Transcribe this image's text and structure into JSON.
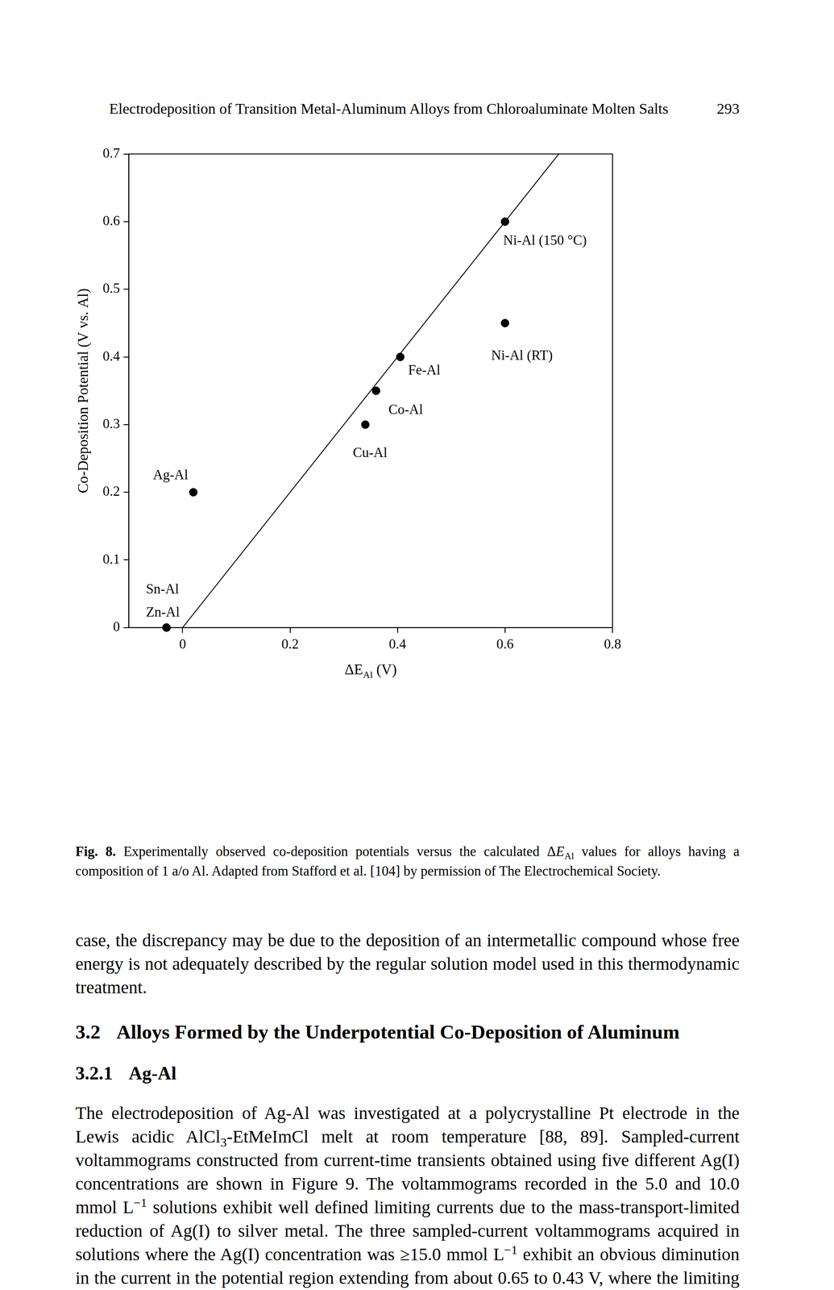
{
  "header": {
    "running_title": "Electrodeposition of Transition Metal-Aluminum Alloys from Chloroaluminate Molten Salts",
    "page_number": "293"
  },
  "chart_data": {
    "type": "scatter",
    "xlabel": {
      "text": "ΔE",
      "sub": "Al",
      "after": " (V)"
    },
    "ylabel": "Co-Deposition Potential (V vs. Al)",
    "xlim": [
      -0.1,
      0.8
    ],
    "xticks": [
      0,
      0.2,
      0.4,
      0.6,
      0.8
    ],
    "ylim": [
      0,
      0.7
    ],
    "yticks": [
      0,
      0.1,
      0.2,
      0.3,
      0.4,
      0.5,
      0.6,
      0.7
    ],
    "grid": false,
    "series": [
      {
        "type": "scatter",
        "color": "#000000",
        "marker": "circle",
        "x": [
          0.6,
          0.6,
          0.405,
          0.36,
          0.34,
          0.02,
          -0.03,
          -0.03
        ],
        "values": [
          0.6,
          0.45,
          0.4,
          0.35,
          0.3,
          0.2,
          0,
          0
        ],
        "labels": [
          "Ni-Al (150 °C)",
          "Ni-Al (RT)",
          "Fe-Al",
          "Co-Al",
          "Cu-Al",
          "Ag-Al",
          "Sn-Al",
          "Zn-Al"
        ]
      },
      {
        "type": "line",
        "color": "#000000",
        "line_style": "solid",
        "x": [
          0,
          0.7
        ],
        "values": [
          0,
          0.7
        ]
      }
    ]
  },
  "caption": [
    {
      "b": "Fig. 8."
    },
    " Experimentally observed co-deposition potentials versus the calculated Δ",
    {
      "i": "E"
    },
    {
      "sub": "Al"
    },
    " values for alloys having a composition of 1 a/o Al. Adapted from Stafford et al. [104] by permission of The Electrochemical Society."
  ],
  "body": [
    {
      "type": "paragraph",
      "runs": [
        "case, the discrepancy may be due to the deposition of an intermetallic compound whose free energy is not adequately described by the regular solution model used in this thermodynamic treatment."
      ]
    },
    {
      "type": "heading",
      "level": 2,
      "number": "3.2",
      "text": "Alloys Formed by the Underpotential Co-Deposition of Aluminum"
    },
    {
      "type": "heading",
      "level": 3,
      "number": "3.2.1",
      "text": "Ag-Al"
    },
    {
      "type": "paragraph",
      "runs": [
        "The electrodeposition of Ag-Al was investigated at a polycrystalline Pt electrode in the Lewis acidic AlCl",
        {
          "sub": "3"
        },
        "-EtMeImCl melt at room temperature [88, 89]. Sampled-current voltammograms constructed from current-time transients obtained using five different Ag(I) concentrations are shown in Figure 9. The voltammograms recorded in the 5.0 and 10.0 mmol L",
        {
          "sup": "−1"
        },
        " solutions exhibit well defined limiting currents due to the mass-transport-limited reduction of Ag(I) to silver metal. The three sampled-current voltammograms acquired in solutions where the Ag(I) concentration was ≥15.0 mmol L",
        {
          "sup": "−1"
        },
        " exhibit an obvious diminution in the current in the potential region extending from about 0.65 to 0.43 V, where the limiting current for the reduction of"
      ]
    }
  ]
}
